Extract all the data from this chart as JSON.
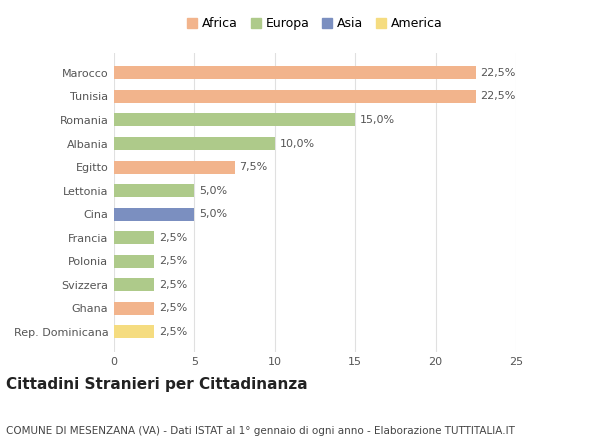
{
  "countries": [
    "Marocco",
    "Tunisia",
    "Romania",
    "Albania",
    "Egitto",
    "Lettonia",
    "Cina",
    "Francia",
    "Polonia",
    "Svizzera",
    "Ghana",
    "Rep. Dominicana"
  ],
  "values": [
    22.5,
    22.5,
    15.0,
    10.0,
    7.5,
    5.0,
    5.0,
    2.5,
    2.5,
    2.5,
    2.5,
    2.5
  ],
  "labels": [
    "22,5%",
    "22,5%",
    "15,0%",
    "10,0%",
    "7,5%",
    "5,0%",
    "5,0%",
    "2,5%",
    "2,5%",
    "2,5%",
    "2,5%",
    "2,5%"
  ],
  "colors": [
    "#F2B48C",
    "#F2B48C",
    "#AECA8A",
    "#AECA8A",
    "#F2B48C",
    "#AECA8A",
    "#7B8FC0",
    "#AECA8A",
    "#AECA8A",
    "#AECA8A",
    "#F2B48C",
    "#F5DC80"
  ],
  "legend_labels": [
    "Africa",
    "Europa",
    "Asia",
    "America"
  ],
  "legend_colors": [
    "#F2B48C",
    "#AECA8A",
    "#7B8FC0",
    "#F5DC80"
  ],
  "xlim": [
    0,
    25
  ],
  "xticks": [
    0,
    5,
    10,
    15,
    20,
    25
  ],
  "title": "Cittadini Stranieri per Cittadinanza",
  "subtitle": "COMUNE DI MESENZANA (VA) - Dati ISTAT al 1° gennaio di ogni anno - Elaborazione TUTTITALIA.IT",
  "background_color": "#ffffff",
  "bar_height": 0.55,
  "grid_color": "#e0e0e0",
  "title_fontsize": 11,
  "subtitle_fontsize": 7.5,
  "label_fontsize": 8,
  "tick_fontsize": 8,
  "legend_fontsize": 9
}
